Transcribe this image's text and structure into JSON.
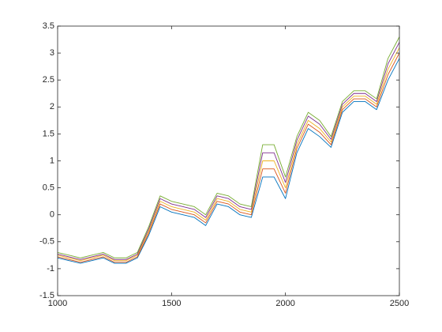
{
  "chart_data": {
    "type": "line",
    "x": [
      1000,
      1050,
      1100,
      1150,
      1200,
      1250,
      1300,
      1350,
      1400,
      1450,
      1500,
      1550,
      1600,
      1650,
      1700,
      1750,
      1800,
      1850,
      1900,
      1950,
      2000,
      2050,
      2100,
      2150,
      2200,
      2250,
      2300,
      2350,
      2400,
      2450,
      2500
    ],
    "series": [
      {
        "color": "#0072BD",
        "values": [
          -0.8,
          -0.85,
          -0.9,
          -0.85,
          -0.8,
          -0.9,
          -0.9,
          -0.8,
          -0.38,
          0.15,
          0.05,
          0,
          -0.05,
          -0.2,
          0.2,
          0.15,
          0,
          -0.05,
          0.7,
          0.7,
          0.3,
          1.15,
          1.6,
          1.45,
          1.25,
          1.9,
          2.1,
          2.1,
          1.95,
          2.5,
          2.9
        ]
      },
      {
        "color": "#D95319",
        "values": [
          -0.78,
          -0.83,
          -0.88,
          -0.83,
          -0.78,
          -0.88,
          -0.88,
          -0.78,
          -0.34,
          0.2,
          0.1,
          0.05,
          0,
          -0.15,
          0.25,
          0.2,
          0.05,
          0,
          0.85,
          0.85,
          0.4,
          1.23,
          1.68,
          1.53,
          1.3,
          1.95,
          2.15,
          2.15,
          2,
          2.6,
          3
        ]
      },
      {
        "color": "#EDB120",
        "values": [
          -0.75,
          -0.8,
          -0.85,
          -0.8,
          -0.75,
          -0.85,
          -0.85,
          -0.75,
          -0.3,
          0.25,
          0.15,
          0.1,
          0.05,
          -0.1,
          0.3,
          0.25,
          0.1,
          0.05,
          1,
          1,
          0.5,
          1.3,
          1.75,
          1.6,
          1.35,
          2,
          2.2,
          2.2,
          2.05,
          2.7,
          3.1
        ]
      },
      {
        "color": "#7E2F8E",
        "values": [
          -0.73,
          -0.78,
          -0.83,
          -0.78,
          -0.73,
          -0.83,
          -0.83,
          -0.73,
          -0.26,
          0.3,
          0.2,
          0.15,
          0.1,
          -0.05,
          0.35,
          0.3,
          0.15,
          0.1,
          1.15,
          1.15,
          0.6,
          1.38,
          1.83,
          1.68,
          1.4,
          2.05,
          2.25,
          2.25,
          2.1,
          2.8,
          3.2
        ]
      },
      {
        "color": "#77AC30",
        "values": [
          -0.7,
          -0.75,
          -0.8,
          -0.75,
          -0.7,
          -0.8,
          -0.8,
          -0.7,
          -0.22,
          0.35,
          0.25,
          0.2,
          0.15,
          0,
          0.4,
          0.35,
          0.2,
          0.15,
          1.3,
          1.3,
          0.7,
          1.45,
          1.9,
          1.75,
          1.45,
          2.1,
          2.3,
          2.3,
          2.15,
          2.9,
          3.3
        ]
      }
    ],
    "xlim": [
      1000,
      2500
    ],
    "ylim": [
      -1.5,
      3.5
    ],
    "xticks": [
      1000,
      1500,
      2000,
      2500
    ],
    "yticks": [
      -1.5,
      -1,
      -0.5,
      0,
      0.5,
      1,
      1.5,
      2,
      2.5,
      3,
      3.5
    ],
    "grid": false
  }
}
